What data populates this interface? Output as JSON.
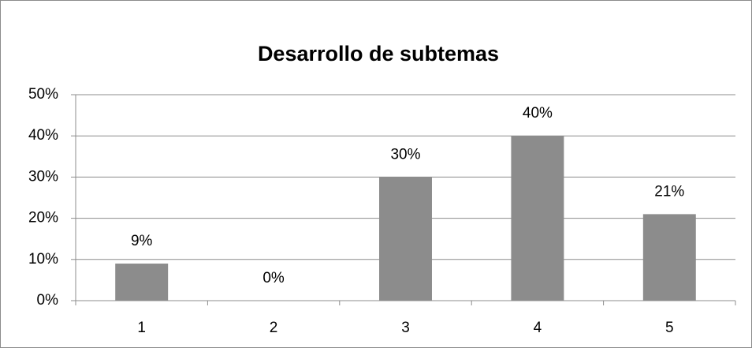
{
  "chart_data": {
    "type": "bar",
    "title": "Desarrollo de subtemas",
    "categories": [
      "1",
      "2",
      "3",
      "4",
      "5"
    ],
    "values": [
      9,
      0,
      30,
      40,
      21
    ],
    "value_labels": [
      "9%",
      "0%",
      "30%",
      "40%",
      "21%"
    ],
    "color": "#8c8c8c",
    "ylim": [
      0,
      50
    ],
    "yticks": [
      {
        "value": 0,
        "label": "0%"
      },
      {
        "value": 10,
        "label": "10%"
      },
      {
        "value": 20,
        "label": "20%"
      },
      {
        "value": 30,
        "label": "30%"
      },
      {
        "value": 40,
        "label": "40%"
      },
      {
        "value": 50,
        "label": "50%"
      }
    ],
    "grid": true
  }
}
